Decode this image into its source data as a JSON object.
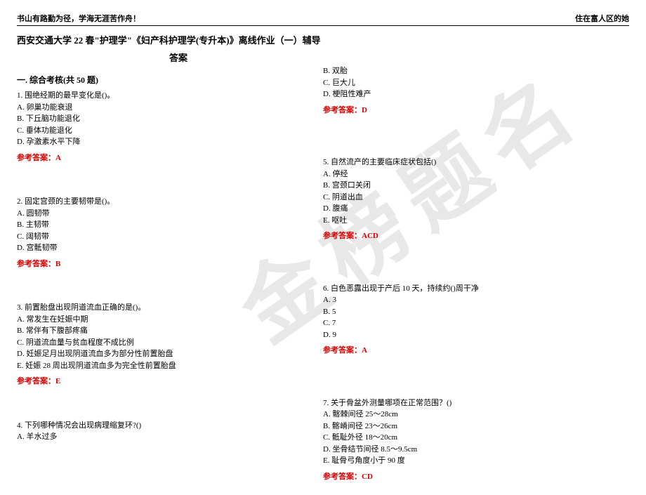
{
  "colors": {
    "answer_red": "#d40000",
    "text_black": "#000000",
    "watermark_gray": "#e8e8e8",
    "background": "#ffffff"
  },
  "typography": {
    "body_fontsize": 11,
    "title_fontsize": 13,
    "watermark_fontsize": 120
  },
  "header": {
    "left": "书山有路勤为径，学海无涯苦作舟！",
    "right": "住在富人区的她"
  },
  "title": "西安交通大学 22 春\"护理学\"《妇产科护理学(专升本)》离线作业（一）辅导",
  "answer_label": "答案",
  "section_title": "一. 综合考核(共 50 题)",
  "watermark_text": "金榜题名",
  "ans_prefix": "参考答案：",
  "left_col": {
    "q1": {
      "stem": "1. 围绝经期的最早变化是()。",
      "opts": [
        "A. 卵巢功能衰退",
        "B. 下丘脑功能退化",
        "C. 垂体功能退化",
        "D. 孕激素水平下降"
      ],
      "ans": "A"
    },
    "q2": {
      "stem": "2. 固定宫颈的主要韧带是()。",
      "opts": [
        "A. 圆韧带",
        "B. 主韧带",
        "C. 阔韧带",
        "D. 宫骶韧带"
      ],
      "ans": "B"
    },
    "q3": {
      "stem": "3. 前置胎盘出现阴道流血正确的是()。",
      "opts": [
        "A. 常发生在妊娠中期",
        "B. 常伴有下腹部疼痛",
        "C. 阴道流血量与贫血程度不成比例",
        "D. 妊娠足月出现阴道流血多为部分性前置胎盘",
        "E. 妊娠 28 周出现阴道流血多为完全性前置胎盘"
      ],
      "ans": "E"
    },
    "q4": {
      "stem": "4. 下列哪种情况会出现病理缩复环?()",
      "opts": [
        "A. 羊水过多"
      ]
    }
  },
  "right_col": {
    "q4_cont": {
      "opts": [
        "B. 双胎",
        "C. 巨大儿",
        "D. 梗阻性难产"
      ],
      "ans": "D"
    },
    "q5": {
      "stem": "5. 自然流产的主要临床症状包括()",
      "opts": [
        "A. 停经",
        "B. 宫颈口关闭",
        "C. 阴道出血",
        "D. 腹痛",
        "E. 呕吐"
      ],
      "ans": "ACD"
    },
    "q6": {
      "stem": "6. 白色恶露出现于产后 10 天，持续约()周干净",
      "opts": [
        "A. 3",
        "B. 5",
        "C. 7",
        "D. 9"
      ],
      "ans": "A"
    },
    "q7": {
      "stem": "7. 关于骨盆外测量哪项在正常范围？()",
      "opts": [
        "A. 髂棘间径 25～28cm",
        "B. 髂嵴间径 23～26cm",
        "C. 骶耻外径 18～20cm",
        "D. 坐骨结节间径 8.5～9.5cm",
        "E. 耻骨弓角度小于 90 度"
      ],
      "ans": "CD"
    }
  }
}
